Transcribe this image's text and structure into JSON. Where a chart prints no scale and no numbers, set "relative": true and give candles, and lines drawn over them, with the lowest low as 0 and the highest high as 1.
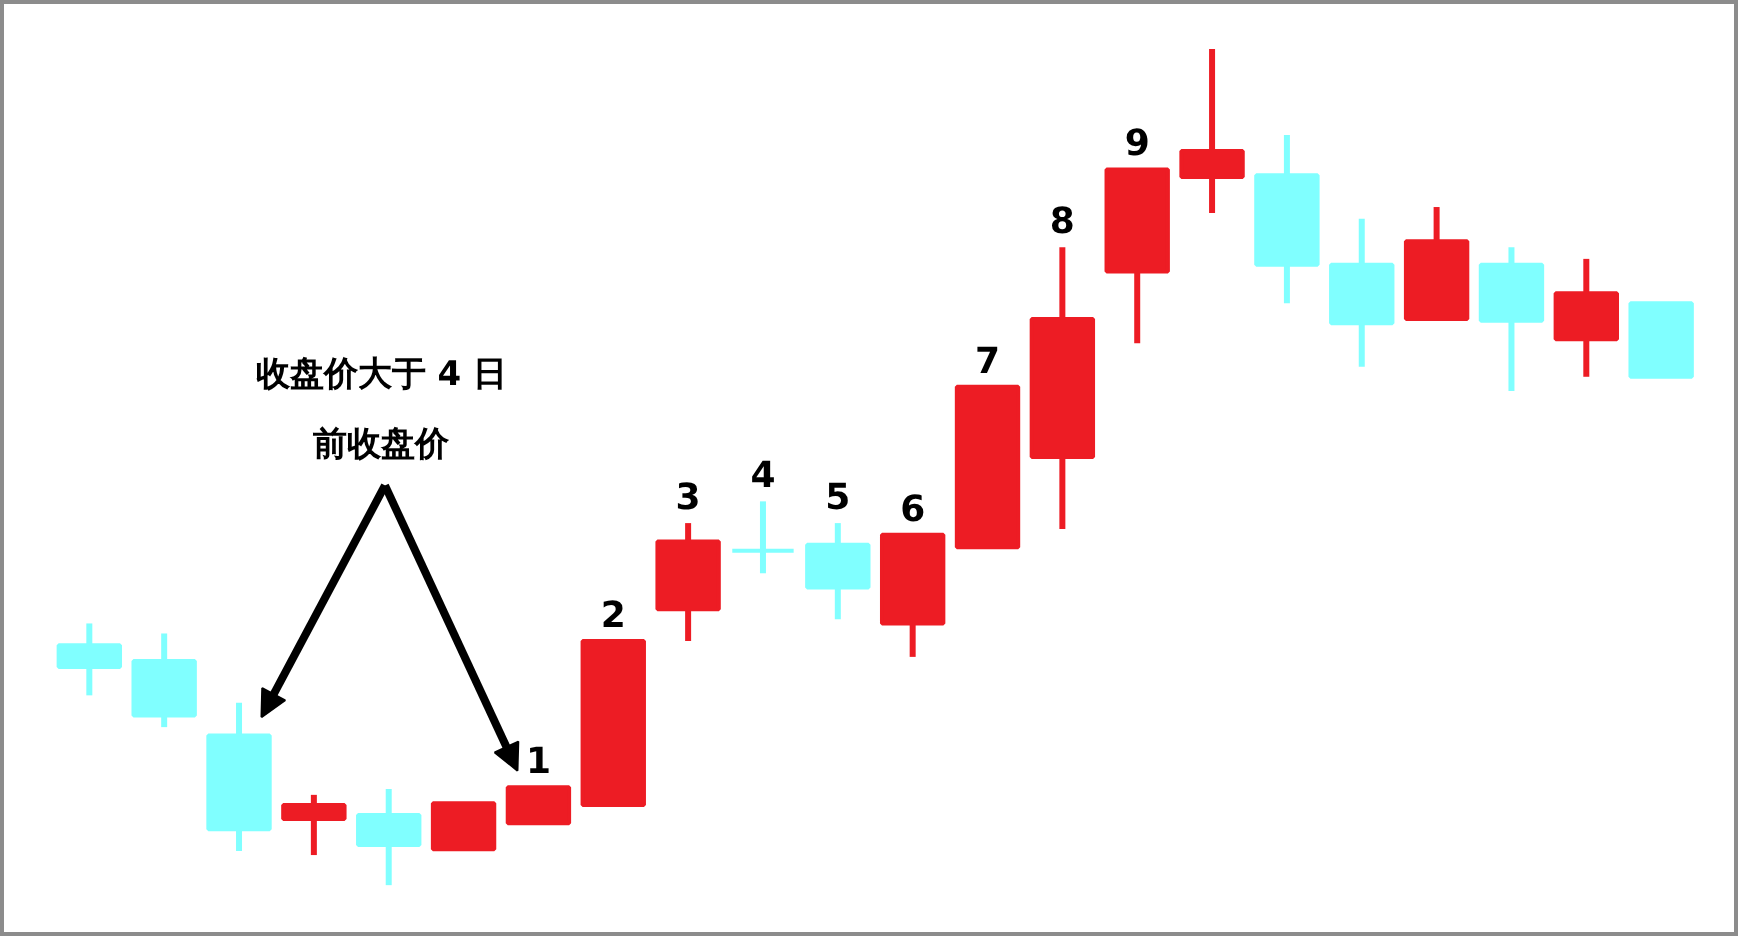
{
  "chart_data": {
    "type": "candlestick",
    "relative": true,
    "categories": [
      null,
      null,
      null,
      null,
      null,
      null,
      null,
      null,
      null,
      null,
      null,
      null,
      null,
      null,
      null,
      null,
      null,
      null,
      null,
      null,
      null,
      null
    ],
    "ohlc": [
      [
        0.287,
        0.313,
        0.227,
        0.261
      ],
      [
        0.268,
        0.301,
        0.189,
        0.203
      ],
      [
        0.179,
        0.218,
        0.041,
        0.067
      ],
      [
        0.079,
        0.108,
        0.036,
        0.096
      ],
      [
        0.084,
        0.115,
        0.0,
        0.048
      ],
      [
        0.043,
        0.098,
        0.043,
        0.098
      ],
      [
        0.074,
        0.117,
        0.074,
        0.117
      ],
      [
        0.096,
        0.292,
        0.096,
        0.292
      ],
      [
        0.33,
        0.433,
        0.292,
        0.411
      ],
      [
        0.4,
        0.459,
        0.373,
        0.4
      ],
      [
        0.407,
        0.433,
        0.318,
        0.356
      ],
      [
        0.313,
        0.419,
        0.273,
        0.419
      ],
      [
        0.404,
        0.596,
        0.404,
        0.596
      ],
      [
        0.512,
        0.763,
        0.426,
        0.677
      ],
      [
        0.734,
        0.856,
        0.648,
        0.856
      ],
      [
        0.847,
        1.0,
        0.804,
        0.878
      ],
      [
        0.849,
        0.897,
        0.696,
        0.742
      ],
      [
        0.742,
        0.797,
        0.62,
        0.672
      ],
      [
        0.677,
        0.811,
        0.677,
        0.77
      ],
      [
        0.742,
        0.763,
        0.591,
        0.675
      ],
      [
        0.653,
        0.749,
        0.608,
        0.708
      ],
      [
        0.696,
        0.696,
        0.608,
        0.608
      ]
    ],
    "colors": [
      "#80ffff",
      "#80ffff",
      "#80ffff",
      "#ed1c24",
      "#80ffff",
      "#ed1c24",
      "#ed1c24",
      "#ed1c24",
      "#ed1c24",
      "#80ffff",
      "#80ffff",
      "#ed1c24",
      "#ed1c24",
      "#ed1c24",
      "#ed1c24",
      "#ed1c24",
      "#80ffff",
      "#80ffff",
      "#ed1c24",
      "#80ffff",
      "#ed1c24",
      "#80ffff"
    ],
    "value_labels": [
      null,
      null,
      null,
      null,
      null,
      null,
      "1",
      "2",
      "3",
      "4",
      "5",
      "6",
      "7",
      "8",
      "9",
      null,
      null,
      null,
      null,
      null,
      null,
      null
    ],
    "annotations": [
      "收盘价大于 4 日前收盘价"
    ]
  }
}
